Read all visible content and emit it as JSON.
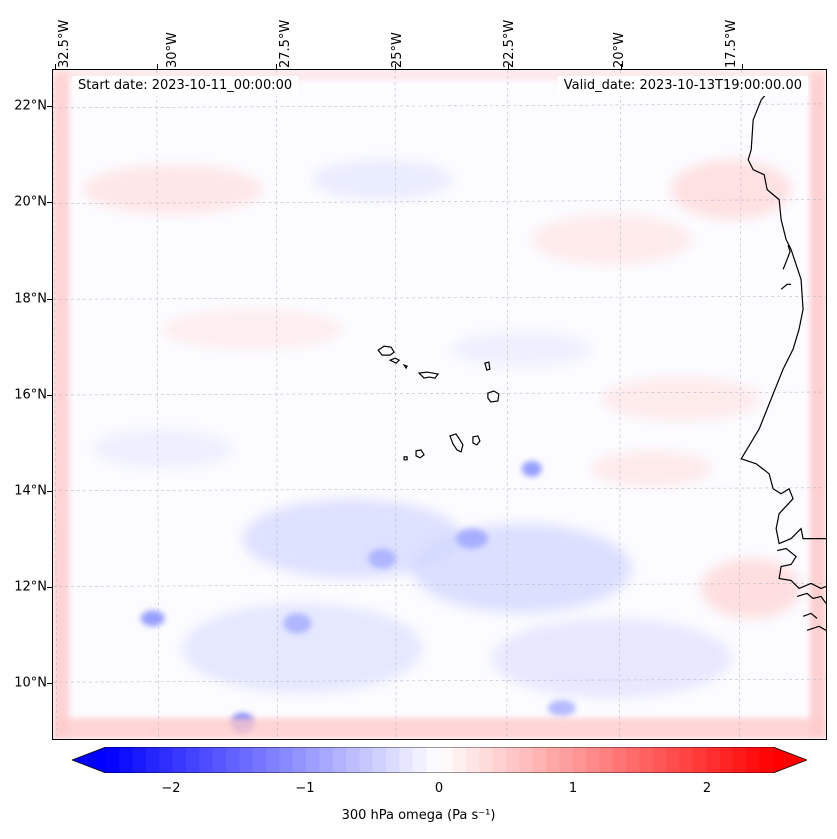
{
  "map": {
    "start_text": "Start date: 2023-10-11_00:00:00",
    "valid_text": "Valid_date: 2023-10-13T19:00:00.00",
    "lon_labels": [
      "32.5°W",
      "30°W",
      "27.5°W",
      "25°W",
      "22.5°W",
      "20°W",
      "17.5°W"
    ],
    "lat_labels": [
      "22°N",
      "20°N",
      "18°N",
      "16°N",
      "14°N",
      "12°N",
      "10°N"
    ],
    "extent": {
      "lon_min": -32.7,
      "lon_max": -15.9,
      "lat_min": 8.9,
      "lat_max": 22.8
    },
    "field_range": [
      -2.5,
      2.5
    ],
    "colors": {
      "negative": "#0000ff",
      "positive": "#ff0000",
      "neutral": "#ffffff",
      "coastline": "#000000",
      "grid": "#b0b0b0"
    }
  },
  "colorbar": {
    "label": "300 hPa omega (Pa s⁻¹)",
    "ticks": [
      "−2",
      "−1",
      "0",
      "1",
      "2"
    ],
    "tick_values": [
      -2,
      -1,
      0,
      1,
      2
    ],
    "min": -2.5,
    "max": 2.5,
    "extend": "both"
  }
}
